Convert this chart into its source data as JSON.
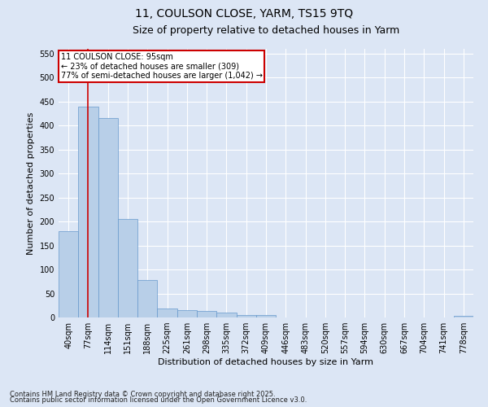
{
  "title_line1": "11, COULSON CLOSE, YARM, TS15 9TQ",
  "title_line2": "Size of property relative to detached houses in Yarm",
  "xlabel": "Distribution of detached houses by size in Yarm",
  "ylabel": "Number of detached properties",
  "bin_labels": [
    "40sqm",
    "77sqm",
    "114sqm",
    "151sqm",
    "188sqm",
    "225sqm",
    "261sqm",
    "298sqm",
    "335sqm",
    "372sqm",
    "409sqm",
    "446sqm",
    "483sqm",
    "520sqm",
    "557sqm",
    "594sqm",
    "630sqm",
    "667sqm",
    "704sqm",
    "741sqm",
    "778sqm"
  ],
  "bar_heights": [
    180,
    440,
    415,
    205,
    78,
    18,
    15,
    13,
    10,
    5,
    5,
    0,
    0,
    0,
    0,
    0,
    0,
    0,
    0,
    0,
    4
  ],
  "bar_color": "#b8cfe8",
  "bar_edge_color": "#6699cc",
  "red_line_color": "#cc0000",
  "annotation_box_text": "11 COULSON CLOSE: 95sqm\n← 23% of detached houses are smaller (309)\n77% of semi-detached houses are larger (1,042) →",
  "annotation_box_color": "#cc0000",
  "ylim": [
    0,
    560
  ],
  "yticks": [
    0,
    50,
    100,
    150,
    200,
    250,
    300,
    350,
    400,
    450,
    500,
    550
  ],
  "background_color": "#dce6f5",
  "grid_color": "#ffffff",
  "footer_line1": "Contains HM Land Registry data © Crown copyright and database right 2025.",
  "footer_line2": "Contains public sector information licensed under the Open Government Licence v3.0.",
  "title_fontsize": 10,
  "subtitle_fontsize": 9,
  "axis_label_fontsize": 8,
  "tick_fontsize": 7,
  "annotation_fontsize": 7,
  "footer_fontsize": 6
}
